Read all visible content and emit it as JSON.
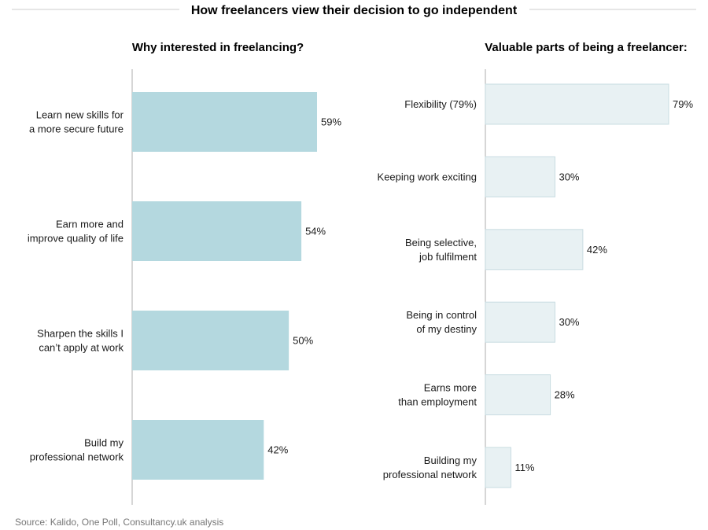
{
  "title": "How freelancers view their decision to go independent",
  "source": "Source: Kalido, One Poll, Consultancy.uk analysis",
  "colors": {
    "left_bar": "#b4d8df",
    "right_bar_fill": "#e8f1f3",
    "right_bar_stroke": "#c9dde2",
    "axis": "#bbbbbb",
    "rule": "#cccccc",
    "text": "#1a1a1a"
  },
  "chart_data": [
    {
      "type": "bar",
      "orientation": "horizontal",
      "title": "Why interested in freelancing?",
      "categories": [
        [
          "Learn new skills for",
          "a more secure future"
        ],
        [
          "Earn more and",
          "improve quality of life"
        ],
        [
          "Sharpen the skills I",
          "can’t apply at work"
        ],
        [
          "Build my",
          "professional network"
        ]
      ],
      "values": [
        59,
        54,
        50,
        42
      ],
      "value_labels": [
        "59%",
        "54%",
        "50%",
        "42%"
      ],
      "unit": "%",
      "xlim": [
        0,
        100
      ],
      "grid": false,
      "legend": "none"
    },
    {
      "type": "bar",
      "orientation": "horizontal",
      "title": "Valuable parts of being a freelancer:",
      "categories": [
        [
          "Flexibility (79%)"
        ],
        [
          "Keeping work exciting"
        ],
        [
          "Being selective,",
          "job fulfilment"
        ],
        [
          "Being in control",
          "of my destiny"
        ],
        [
          "Earns more",
          "than employment"
        ],
        [
          "Building my",
          "professional network"
        ]
      ],
      "values": [
        79,
        30,
        42,
        30,
        28,
        11
      ],
      "value_labels": [
        "79%",
        "30%",
        "42%",
        "30%",
        "28%",
        "11%"
      ],
      "unit": "%",
      "xlim": [
        0,
        100
      ],
      "grid": false,
      "legend": "none"
    }
  ]
}
